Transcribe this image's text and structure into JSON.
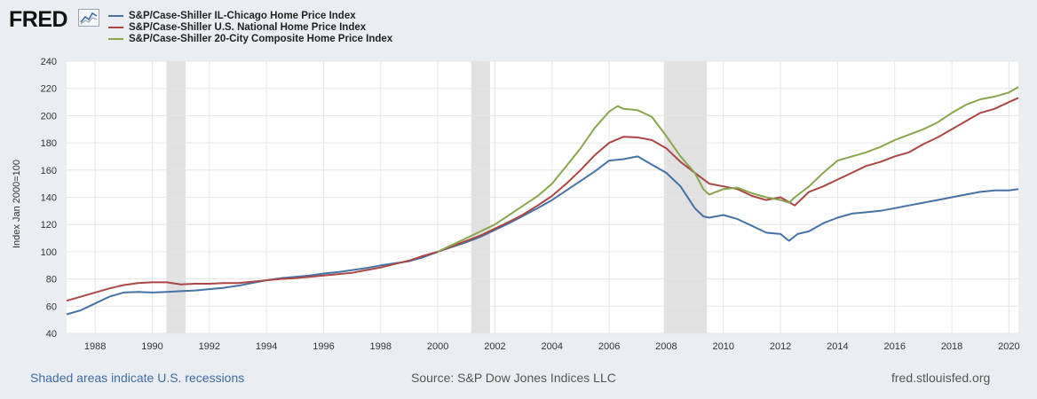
{
  "brand": {
    "logo_text": "FRED"
  },
  "colors": {
    "chicago": "#4572a7",
    "national": "#aa4643",
    "composite": "#89a54e",
    "recession": "#e1e1e1",
    "grid": "#e6e6e6"
  },
  "footer": {
    "recession_note": "Shaded areas indicate U.S. recessions",
    "source": "Source: S&P Dow Jones Indices LLC",
    "site": "fred.stlouisfed.org"
  },
  "chart_data": {
    "type": "line",
    "ylabel": "Index Jan 2000=100",
    "xlabel": "",
    "ylim": [
      40,
      240
    ],
    "xlim": [
      1987.0,
      2020.33
    ],
    "y_ticks": [
      40,
      60,
      80,
      100,
      120,
      140,
      160,
      180,
      200,
      220,
      240
    ],
    "x_ticks": [
      1988,
      1990,
      1992,
      1994,
      1996,
      1998,
      2000,
      2002,
      2004,
      2006,
      2008,
      2010,
      2012,
      2014,
      2016,
      2018,
      2020
    ],
    "grid": true,
    "legend_position": "top-left",
    "recessions": [
      [
        1990.5,
        1991.17
      ],
      [
        2001.17,
        2001.83
      ],
      [
        2007.92,
        2009.42
      ]
    ],
    "series": [
      {
        "name": "S&P/Case-Shiller IL-Chicago Home Price Index",
        "color_key": "chicago",
        "x": [
          1987.0,
          1987.5,
          1988.0,
          1988.5,
          1989.0,
          1989.5,
          1990.0,
          1990.5,
          1991.0,
          1991.5,
          1992.0,
          1992.5,
          1993.0,
          1993.5,
          1994.0,
          1994.5,
          1995.0,
          1995.5,
          1996.0,
          1996.5,
          1997.0,
          1997.5,
          1998.0,
          1998.5,
          1999.0,
          1999.5,
          2000.0,
          2000.5,
          2001.0,
          2001.5,
          2002.0,
          2002.5,
          2003.0,
          2003.5,
          2004.0,
          2004.5,
          2005.0,
          2005.5,
          2006.0,
          2006.5,
          2007.0,
          2007.5,
          2008.0,
          2008.5,
          2009.0,
          2009.3,
          2009.5,
          2010.0,
          2010.5,
          2011.0,
          2011.5,
          2012.0,
          2012.3,
          2012.6,
          2013.0,
          2013.5,
          2014.0,
          2014.5,
          2015.0,
          2015.5,
          2016.0,
          2016.5,
          2017.0,
          2017.5,
          2018.0,
          2018.5,
          2019.0,
          2019.5,
          2020.0,
          2020.33
        ],
        "values": [
          54,
          57,
          62,
          67,
          70,
          70.5,
          70,
          70.5,
          71,
          71.5,
          72.5,
          73.5,
          75,
          77,
          79,
          80.5,
          81.5,
          82.5,
          84,
          85,
          86.5,
          88,
          90,
          91.5,
          93,
          96,
          100,
          103.5,
          107,
          111,
          116,
          121,
          126.5,
          132,
          138,
          145,
          152,
          159,
          167,
          168,
          170,
          164,
          158,
          148,
          132,
          126,
          125,
          127,
          124,
          119,
          114,
          113,
          108,
          113,
          115,
          121,
          125,
          128,
          129,
          130,
          132,
          134,
          136,
          138,
          140,
          142,
          144,
          145,
          145,
          146
        ]
      },
      {
        "name": "S&P/Case-Shiller U.S. National Home Price Index",
        "color_key": "national",
        "x": [
          1987.0,
          1987.5,
          1988.0,
          1988.5,
          1989.0,
          1989.5,
          1990.0,
          1990.5,
          1991.0,
          1991.5,
          1992.0,
          1992.5,
          1993.0,
          1993.5,
          1994.0,
          1994.5,
          1995.0,
          1995.5,
          1996.0,
          1996.5,
          1997.0,
          1997.5,
          1998.0,
          1998.5,
          1999.0,
          1999.5,
          2000.0,
          2000.5,
          2001.0,
          2001.5,
          2002.0,
          2002.5,
          2003.0,
          2003.5,
          2004.0,
          2004.5,
          2005.0,
          2005.5,
          2006.0,
          2006.5,
          2007.0,
          2007.5,
          2008.0,
          2008.5,
          2009.0,
          2009.5,
          2010.0,
          2010.5,
          2011.0,
          2011.5,
          2012.0,
          2012.5,
          2013.0,
          2013.5,
          2014.0,
          2014.5,
          2015.0,
          2015.5,
          2016.0,
          2016.5,
          2017.0,
          2017.5,
          2018.0,
          2018.5,
          2019.0,
          2019.5,
          2020.0,
          2020.33
        ],
        "values": [
          64,
          67,
          70,
          73,
          75.5,
          77,
          77.5,
          77.5,
          76,
          76.5,
          76.5,
          77,
          77,
          78,
          79,
          80,
          80.5,
          81.5,
          82.5,
          83.5,
          84.5,
          86.5,
          88.5,
          91,
          93.5,
          97,
          100,
          104,
          108,
          112,
          117,
          122,
          127.5,
          134,
          141,
          150,
          160,
          171,
          180,
          184.5,
          184,
          182,
          176,
          166,
          158,
          150,
          148,
          146,
          141,
          138,
          140,
          134,
          144,
          148,
          153,
          158,
          163,
          166,
          170,
          173,
          179,
          184,
          190,
          196,
          202,
          205,
          210,
          213
        ]
      },
      {
        "name": "S&P/Case-Shiller 20-City Composite Home Price Index",
        "color_key": "composite",
        "x": [
          2000.0,
          2000.5,
          2001.0,
          2001.5,
          2002.0,
          2002.5,
          2003.0,
          2003.5,
          2004.0,
          2004.5,
          2005.0,
          2005.5,
          2006.0,
          2006.3,
          2006.5,
          2007.0,
          2007.5,
          2008.0,
          2008.5,
          2009.0,
          2009.3,
          2009.5,
          2010.0,
          2010.5,
          2011.0,
          2011.5,
          2012.0,
          2012.3,
          2012.5,
          2013.0,
          2013.5,
          2014.0,
          2014.5,
          2015.0,
          2015.5,
          2016.0,
          2016.5,
          2017.0,
          2017.5,
          2018.0,
          2018.5,
          2019.0,
          2019.5,
          2020.0,
          2020.33
        ],
        "values": [
          100,
          105,
          110,
          115,
          120,
          127,
          134,
          141,
          150,
          163,
          176,
          191,
          203,
          207,
          205,
          204,
          199,
          185,
          170,
          158,
          146,
          142,
          146,
          147,
          143,
          140,
          138,
          136,
          140,
          148,
          158,
          167,
          170,
          173,
          177,
          182,
          186,
          190,
          195,
          202,
          208,
          212,
          214,
          217,
          221
        ]
      }
    ]
  }
}
